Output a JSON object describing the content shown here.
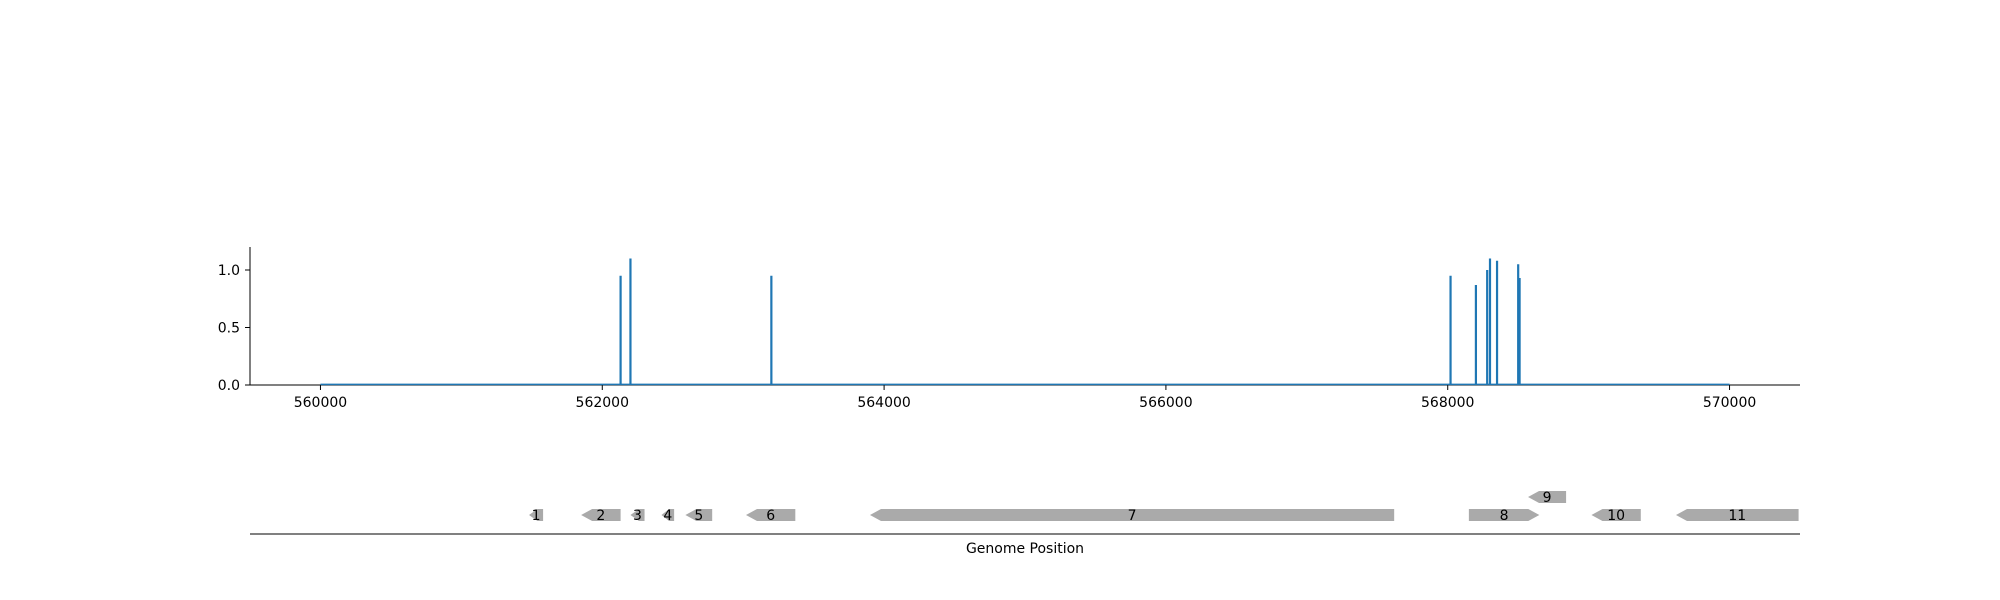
{
  "chart_data": [
    {
      "type": "bar",
      "description_role": "coverage-track",
      "x_domain": [
        559500,
        570500
      ],
      "ylim": [
        0,
        1.2
      ],
      "x_ticks": [
        560000,
        562000,
        564000,
        566000,
        568000,
        570000
      ],
      "x_tick_labels": [
        "560000",
        "562000",
        "564000",
        "566000",
        "568000",
        "570000"
      ],
      "y_ticks": [
        0.0,
        0.5,
        1.0
      ],
      "y_tick_labels": [
        "0.0",
        "0.5",
        "1.0"
      ],
      "baseline_range": [
        560000,
        570000
      ],
      "peaks": [
        {
          "x": 562130,
          "y": 0.95
        },
        {
          "x": 562200,
          "y": 1.1
        },
        {
          "x": 563200,
          "y": 0.95
        },
        {
          "x": 568020,
          "y": 0.95
        },
        {
          "x": 568200,
          "y": 0.87
        },
        {
          "x": 568280,
          "y": 1.0
        },
        {
          "x": 568300,
          "y": 1.1
        },
        {
          "x": 568350,
          "y": 1.08
        },
        {
          "x": 568500,
          "y": 1.05
        },
        {
          "x": 568510,
          "y": 0.93
        }
      ],
      "color": "#1f77b4",
      "grid": false
    },
    {
      "type": "gene-track",
      "x_domain": [
        559500,
        570500
      ],
      "xlabel": "Genome Position",
      "genes": [
        {
          "label": "1",
          "start": 561480,
          "end": 561580,
          "strand": "-",
          "row": 0
        },
        {
          "label": "2",
          "start": 561850,
          "end": 562130,
          "strand": "-",
          "row": 0
        },
        {
          "label": "3",
          "start": 562200,
          "end": 562300,
          "strand": "-",
          "row": 0
        },
        {
          "label": "4",
          "start": 562420,
          "end": 562510,
          "strand": "-",
          "row": 0
        },
        {
          "label": "5",
          "start": 562590,
          "end": 562780,
          "strand": "-",
          "row": 0
        },
        {
          "label": "6",
          "start": 563020,
          "end": 563370,
          "strand": "-",
          "row": 0
        },
        {
          "label": "7",
          "start": 563900,
          "end": 567620,
          "strand": "-",
          "row": 0
        },
        {
          "label": "8",
          "start": 568150,
          "end": 568650,
          "strand": "+",
          "row": 0
        },
        {
          "label": "9",
          "start": 568570,
          "end": 568840,
          "strand": "-",
          "row": 1
        },
        {
          "label": "10",
          "start": 569020,
          "end": 569370,
          "strand": "-",
          "row": 0
        },
        {
          "label": "11",
          "start": 569620,
          "end": 570490,
          "strand": "-",
          "row": 0
        }
      ],
      "color": "#aaaaaa"
    }
  ]
}
